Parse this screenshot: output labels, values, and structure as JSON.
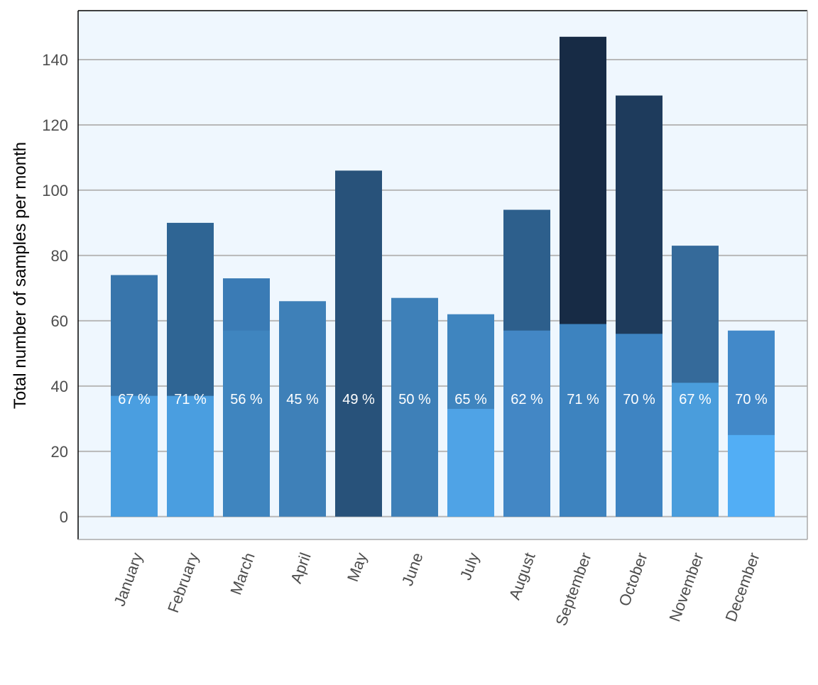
{
  "chart_data": {
    "type": "overlay_bar",
    "y_label": "Total number of samples per month",
    "categories": [
      "January",
      "February",
      "March",
      "April",
      "May",
      "June",
      "July",
      "August",
      "September",
      "October",
      "November",
      "December"
    ],
    "series": [
      {
        "values": [
          74,
          90,
          73,
          66,
          106,
          67,
          62,
          94,
          147,
          129,
          83,
          57
        ],
        "colors": [
          "#3875ab",
          "#2f6594",
          "#3a7bb5",
          "#3e80b8",
          "#28527a",
          "#3e80b8",
          "#3f85bf",
          "#2d5f8c",
          "#172b45",
          "#1e3b5c",
          "#356a9a",
          "#4289c9"
        ]
      },
      {
        "values": [
          37,
          37,
          57,
          null,
          null,
          null,
          33,
          57,
          59,
          56,
          41,
          25
        ],
        "colors": [
          "#4a9ee0",
          "#4a9ee0",
          "#3f85bf",
          null,
          null,
          null,
          "#4fa3e6",
          "#4387c5",
          "#3d83bf",
          "#3e84c2",
          "#4a9ddc",
          "#52aef5"
        ]
      }
    ],
    "percent": {
      "values": [
        67,
        71,
        56,
        45,
        49,
        50,
        65,
        62,
        71,
        70,
        67,
        70
      ],
      "value_labels": [
        "67 %",
        "71 %",
        "56 %",
        "45 %",
        "49 %",
        "50 %",
        "65 %",
        "62 %",
        "71 %",
        "70 %",
        "67 %",
        "70 %"
      ]
    },
    "ylim": [
      -7,
      155
    ],
    "yticks": [
      0,
      20,
      40,
      60,
      80,
      100,
      120,
      140
    ],
    "grid": true
  }
}
